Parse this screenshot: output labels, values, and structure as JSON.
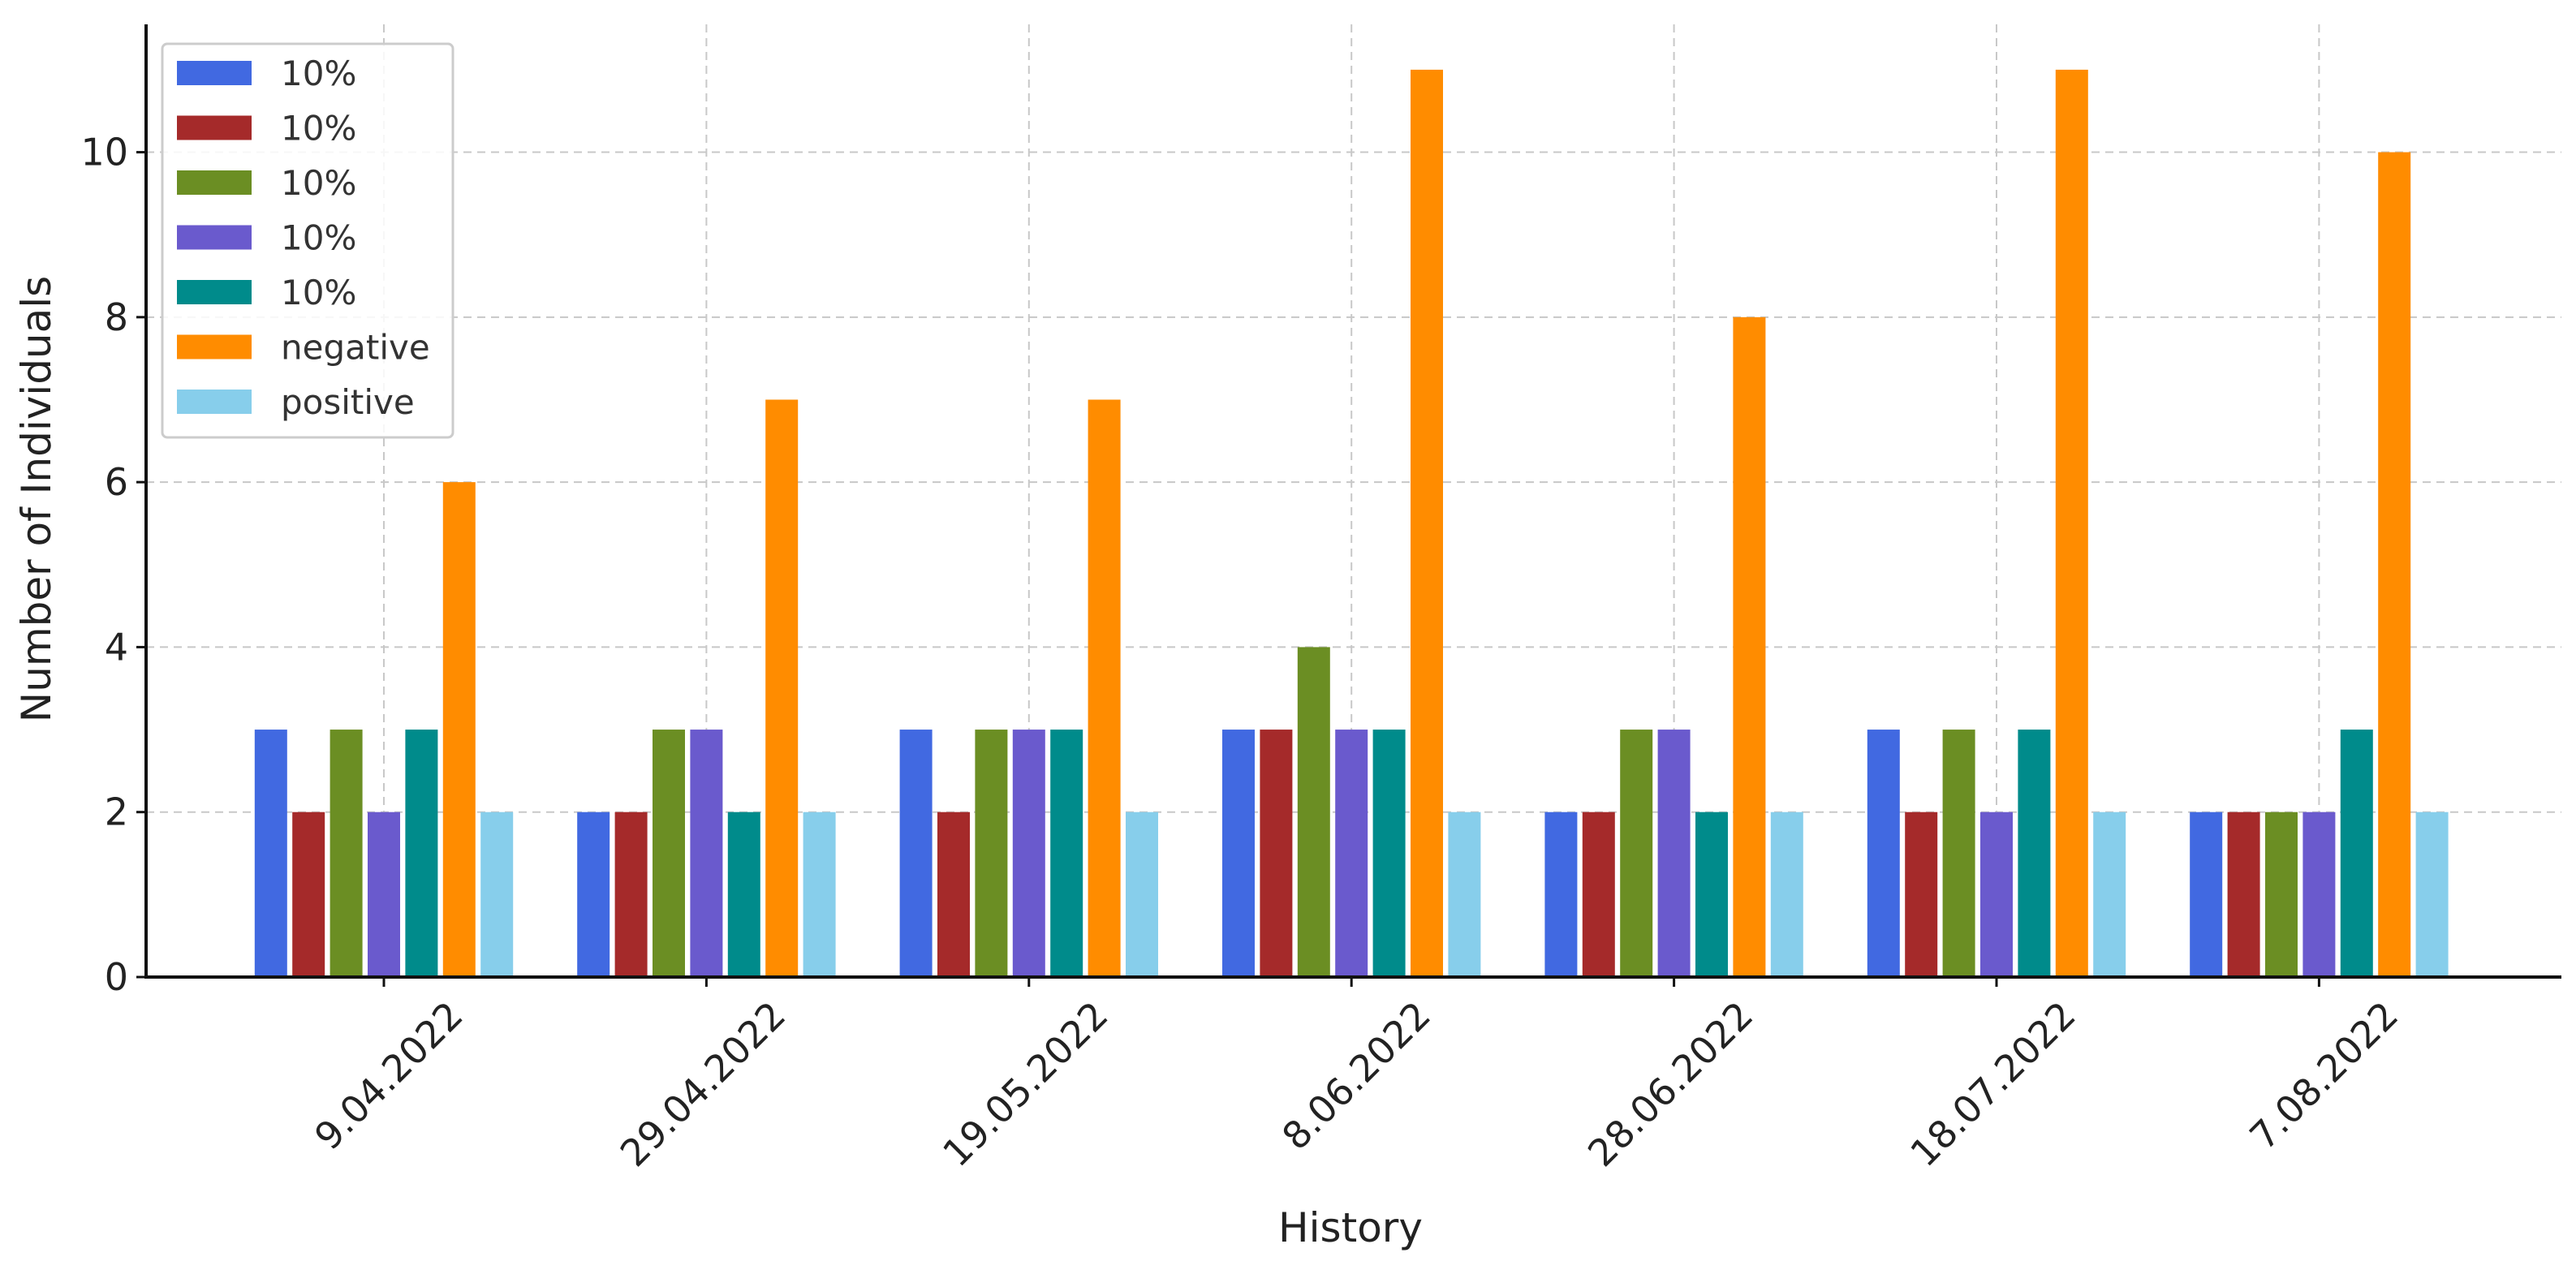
{
  "chart_data": {
    "type": "bar",
    "title": "",
    "xlabel": "History",
    "ylabel": "Number of Individuals",
    "categories": [
      "9.04.2022",
      "29.04.2022",
      "19.05.2022",
      "8.06.2022",
      "28.06.2022",
      "18.07.2022",
      "7.08.2022"
    ],
    "series": [
      {
        "name": "10%",
        "color": "#4169e1",
        "values": [
          3,
          2,
          3,
          3,
          2,
          3,
          2
        ]
      },
      {
        "name": "10%",
        "color": "#a52a2a",
        "values": [
          2,
          2,
          2,
          3,
          2,
          2,
          2
        ]
      },
      {
        "name": "10%",
        "color": "#6b8e23",
        "values": [
          3,
          3,
          3,
          4,
          3,
          3,
          2
        ]
      },
      {
        "name": "10%",
        "color": "#6a5acd",
        "values": [
          2,
          3,
          3,
          3,
          3,
          2,
          2
        ]
      },
      {
        "name": "10%",
        "color": "#008b8b",
        "values": [
          3,
          2,
          3,
          3,
          2,
          3,
          3
        ]
      },
      {
        "name": "negative",
        "color": "#ff8c00",
        "values": [
          6,
          7,
          7,
          11,
          8,
          11,
          10
        ]
      },
      {
        "name": "positive",
        "color": "#87ceeb",
        "values": [
          2,
          2,
          2,
          2,
          2,
          2,
          2
        ]
      }
    ],
    "ylim": [
      0,
      11.55
    ],
    "yticks": [
      0,
      2,
      4,
      6,
      8,
      10
    ],
    "grid": true,
    "legend": "top-left"
  }
}
